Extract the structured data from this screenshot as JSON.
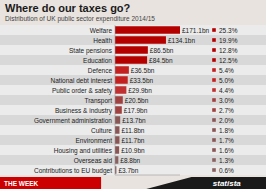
{
  "chart_data": {
    "type": "bar",
    "orientation": "horizontal",
    "title": "Where do our taxes go?",
    "subtitle": "Distribution of UK public sector expenditure 2014/15",
    "categories": [
      "Welfare",
      "Health",
      "State pensions",
      "Education",
      "Defence",
      "National debt interest",
      "Public order & safety",
      "Transport",
      "Business & industry",
      "Government administration",
      "Culture",
      "Environment",
      "Housing and utilities",
      "Overseas aid",
      "Contributions to EU budget"
    ],
    "values": [
      171.1,
      134.1,
      86.5,
      84.5,
      36.5,
      33.5,
      29.9,
      20.5,
      17.9,
      13.7,
      11.8,
      11.7,
      10.9,
      8.8,
      3.7
    ],
    "value_labels": [
      "£171.1bn",
      "£134.1bn",
      "£86.5bn",
      "£84.5bn",
      "£36.5bn",
      "£33.5bn",
      "£29.9bn",
      "£20.5bn",
      "£17.9bn",
      "£13.7bn",
      "£11.8bn",
      "£11.7bn",
      "£10.9bn",
      "£8.8bn",
      "£3.7bn"
    ],
    "shares": [
      25.3,
      19.9,
      12.8,
      12.5,
      5.4,
      5.0,
      4.4,
      3.0,
      2.7,
      2.0,
      1.8,
      1.7,
      1.6,
      1.3,
      0.6
    ],
    "share_labels": [
      "25.3%",
      "19.9%",
      "12.8%",
      "12.5%",
      "5.4%",
      "5.0%",
      "4.4%",
      "3.0%",
      "2.7%",
      "2.0%",
      "1.8%",
      "1.7%",
      "1.6%",
      "1.3%",
      "0.6%"
    ],
    "colors": [
      "#b50000",
      "#b50000",
      "#b50000",
      "#b50000",
      "#c42020",
      "#c42020",
      "#c03030",
      "#a04040",
      "#a04040",
      "#8a5555",
      "#8a5555",
      "#8a5555",
      "#8a5555",
      "#8a6060",
      "#8a6060"
    ],
    "xlim": [
      0,
      171.1
    ],
    "tick_labels": false,
    "data_labels": true,
    "grid": false,
    "annotations": [
      "THE WEEK",
      "statista"
    ]
  }
}
